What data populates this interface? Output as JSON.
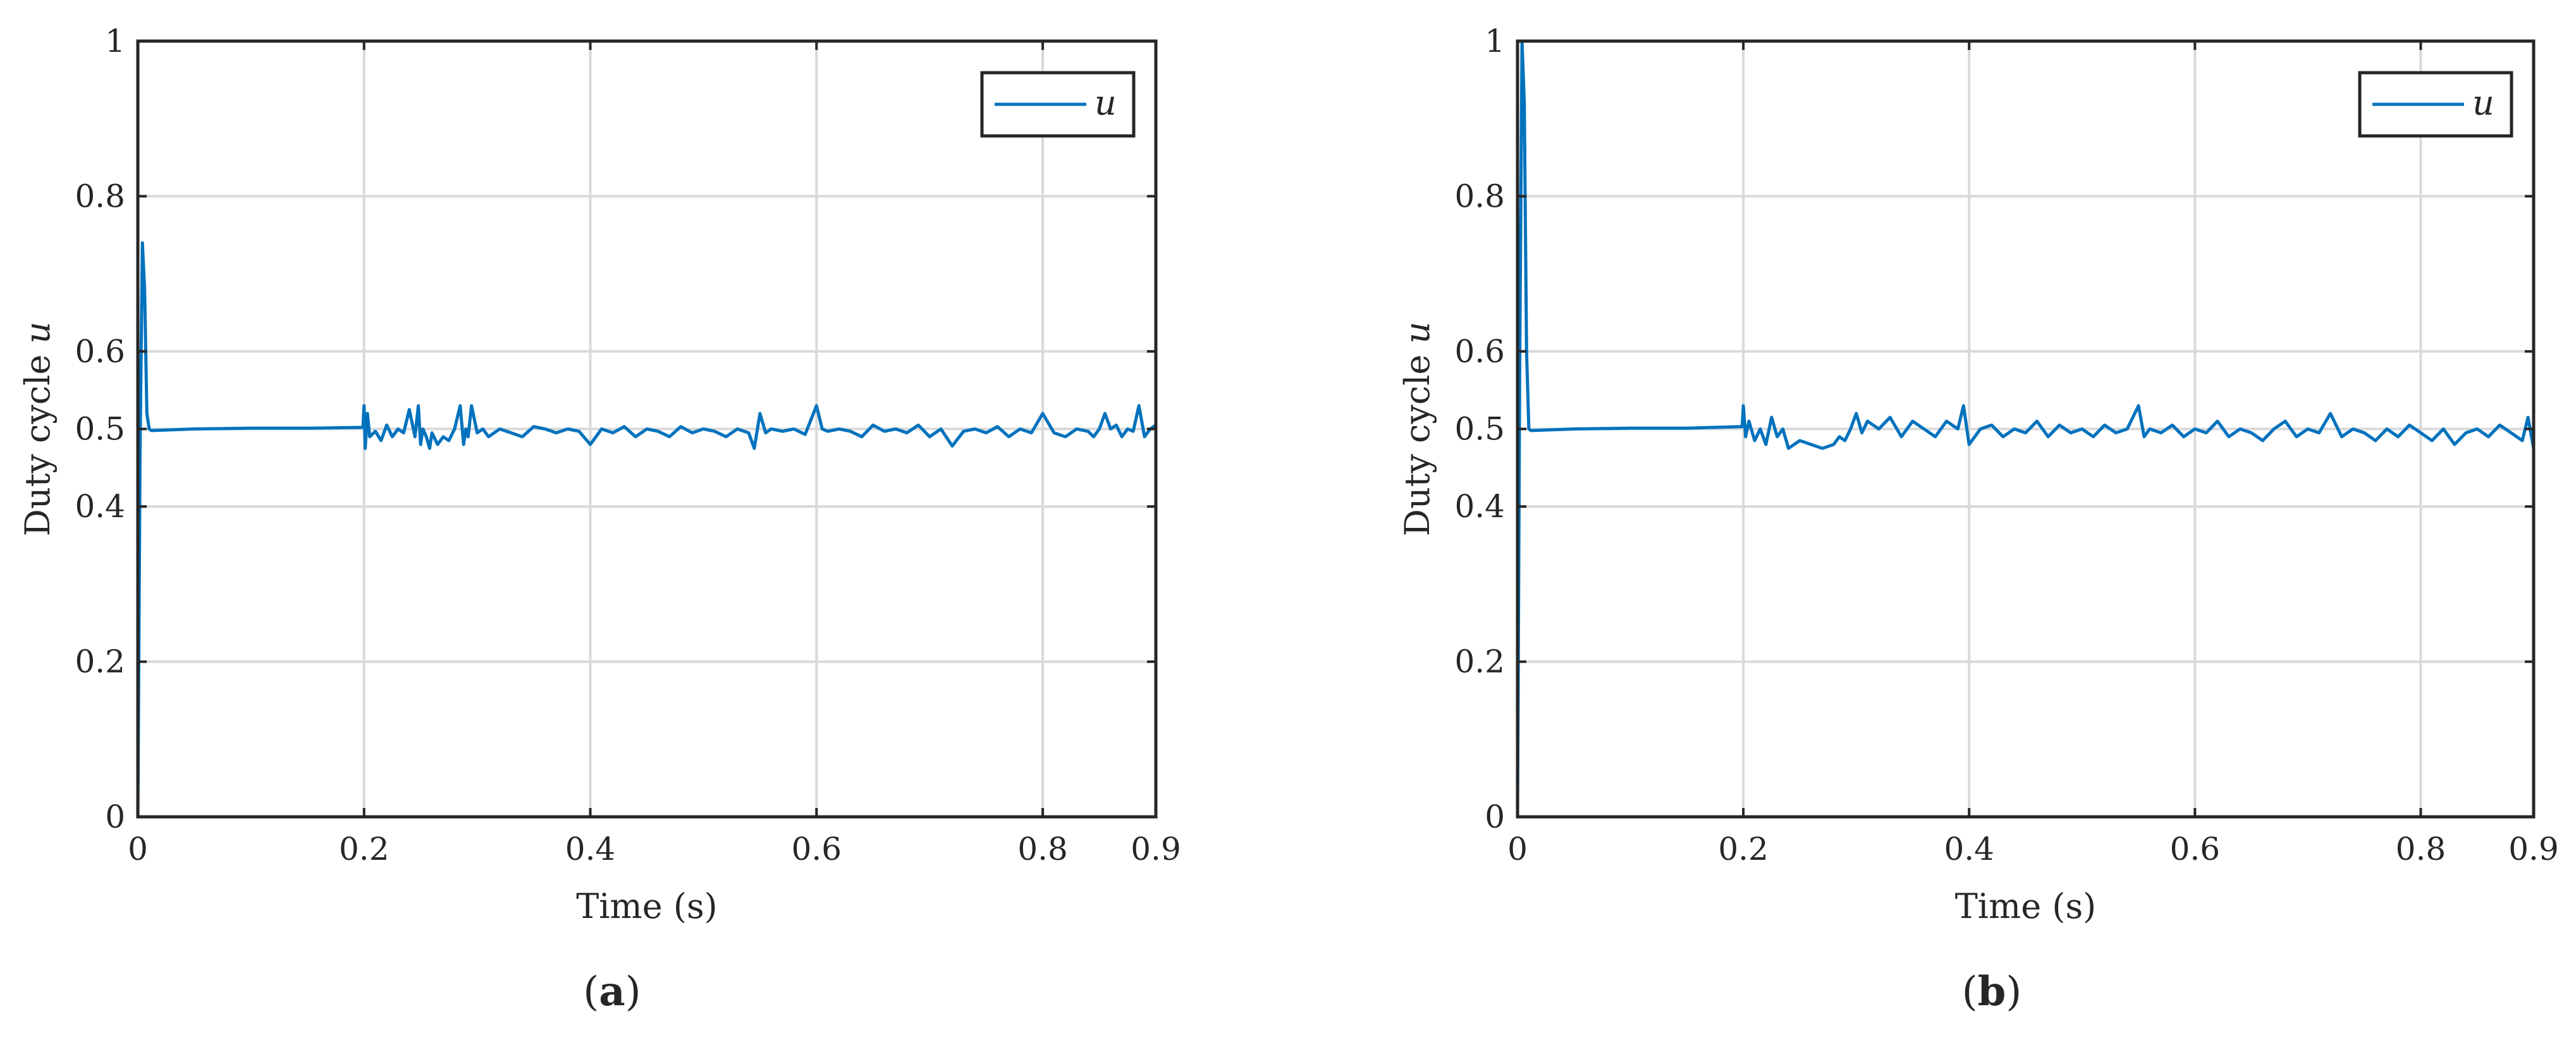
{
  "chart_data": [
    {
      "type": "line",
      "panel": "a",
      "caption": {
        "open": "(",
        "letter": "a",
        "close": ")"
      },
      "xlabel": "Time (s)",
      "ylabel_text": "Duty cycle ",
      "ylabel_var": "u",
      "xlim": [
        0,
        0.9
      ],
      "ylim": [
        0,
        1
      ],
      "xticks": [
        "0",
        "0.2",
        "0.4",
        "0.6",
        "0.8",
        "0.9"
      ],
      "xtick_values": [
        0,
        0.2,
        0.4,
        0.6,
        0.8,
        0.9
      ],
      "yticks": [
        "0",
        "0.2",
        "0.4",
        "0.5",
        "0.6",
        "0.8",
        "1"
      ],
      "ytick_values": [
        0,
        0.2,
        0.4,
        0.5,
        0.6,
        0.8,
        1
      ],
      "grid": true,
      "legend_position": "top-right",
      "series": [
        {
          "name": "u",
          "color": "#0072BD",
          "x": [
            0,
            0.002,
            0.004,
            0.006,
            0.008,
            0.01,
            0.012,
            0.05,
            0.1,
            0.15,
            0.199,
            0.2,
            0.201,
            0.203,
            0.205,
            0.21,
            0.215,
            0.22,
            0.225,
            0.23,
            0.235,
            0.24,
            0.245,
            0.248,
            0.25,
            0.252,
            0.255,
            0.258,
            0.26,
            0.265,
            0.27,
            0.275,
            0.28,
            0.285,
            0.288,
            0.29,
            0.292,
            0.295,
            0.3,
            0.305,
            0.31,
            0.32,
            0.33,
            0.34,
            0.35,
            0.36,
            0.37,
            0.38,
            0.39,
            0.4,
            0.41,
            0.42,
            0.43,
            0.44,
            0.45,
            0.46,
            0.47,
            0.48,
            0.49,
            0.5,
            0.51,
            0.52,
            0.53,
            0.54,
            0.545,
            0.55,
            0.555,
            0.56,
            0.57,
            0.58,
            0.59,
            0.6,
            0.605,
            0.61,
            0.62,
            0.63,
            0.64,
            0.65,
            0.66,
            0.67,
            0.68,
            0.69,
            0.7,
            0.71,
            0.72,
            0.73,
            0.74,
            0.75,
            0.76,
            0.77,
            0.78,
            0.79,
            0.8,
            0.81,
            0.82,
            0.83,
            0.84,
            0.845,
            0.85,
            0.855,
            0.86,
            0.865,
            0.87,
            0.875,
            0.88,
            0.885,
            0.89,
            0.895,
            0.9
          ],
          "values": [
            0,
            0.48,
            0.74,
            0.68,
            0.52,
            0.5,
            0.498,
            0.5,
            0.501,
            0.501,
            0.502,
            0.53,
            0.475,
            0.52,
            0.49,
            0.497,
            0.485,
            0.505,
            0.49,
            0.5,
            0.495,
            0.525,
            0.49,
            0.53,
            0.48,
            0.5,
            0.49,
            0.475,
            0.495,
            0.48,
            0.49,
            0.485,
            0.5,
            0.53,
            0.48,
            0.5,
            0.49,
            0.53,
            0.495,
            0.5,
            0.49,
            0.5,
            0.495,
            0.49,
            0.503,
            0.5,
            0.495,
            0.5,
            0.497,
            0.48,
            0.5,
            0.495,
            0.503,
            0.49,
            0.5,
            0.497,
            0.49,
            0.503,
            0.495,
            0.5,
            0.497,
            0.49,
            0.5,
            0.495,
            0.475,
            0.52,
            0.495,
            0.5,
            0.497,
            0.5,
            0.493,
            0.53,
            0.5,
            0.497,
            0.5,
            0.497,
            0.49,
            0.505,
            0.497,
            0.5,
            0.495,
            0.505,
            0.49,
            0.5,
            0.478,
            0.497,
            0.5,
            0.495,
            0.503,
            0.49,
            0.5,
            0.495,
            0.52,
            0.495,
            0.49,
            0.5,
            0.497,
            0.49,
            0.5,
            0.52,
            0.5,
            0.505,
            0.49,
            0.5,
            0.497,
            0.53,
            0.49,
            0.5,
            0.505
          ]
        }
      ]
    },
    {
      "type": "line",
      "panel": "b",
      "caption": {
        "open": "(",
        "letter": "b",
        "close": ")"
      },
      "xlabel": "Time (s)",
      "ylabel_text": "Duty cycle ",
      "ylabel_var": "u",
      "xlim": [
        0,
        0.9
      ],
      "ylim": [
        0,
        1
      ],
      "xticks": [
        "0",
        "0.2",
        "0.4",
        "0.6",
        "0.8",
        "0.9"
      ],
      "xtick_values": [
        0,
        0.2,
        0.4,
        0.6,
        0.8,
        0.9
      ],
      "yticks": [
        "0",
        "0.2",
        "0.4",
        "0.5",
        "0.6",
        "0.8",
        "1"
      ],
      "ytick_values": [
        0,
        0.2,
        0.4,
        0.5,
        0.6,
        0.8,
        1
      ],
      "grid": true,
      "legend_position": "top-right",
      "series": [
        {
          "name": "u",
          "color": "#0072BD",
          "x": [
            0,
            0.002,
            0.004,
            0.006,
            0.008,
            0.01,
            0.012,
            0.05,
            0.1,
            0.15,
            0.199,
            0.2,
            0.202,
            0.205,
            0.21,
            0.215,
            0.22,
            0.225,
            0.23,
            0.235,
            0.24,
            0.25,
            0.26,
            0.27,
            0.28,
            0.285,
            0.29,
            0.295,
            0.3,
            0.305,
            0.31,
            0.32,
            0.33,
            0.34,
            0.35,
            0.36,
            0.37,
            0.38,
            0.39,
            0.395,
            0.4,
            0.41,
            0.42,
            0.43,
            0.44,
            0.45,
            0.46,
            0.47,
            0.48,
            0.49,
            0.5,
            0.51,
            0.52,
            0.53,
            0.54,
            0.55,
            0.555,
            0.56,
            0.57,
            0.58,
            0.59,
            0.6,
            0.61,
            0.62,
            0.63,
            0.64,
            0.65,
            0.66,
            0.67,
            0.68,
            0.69,
            0.7,
            0.71,
            0.72,
            0.73,
            0.74,
            0.75,
            0.76,
            0.77,
            0.78,
            0.79,
            0.8,
            0.81,
            0.82,
            0.83,
            0.84,
            0.85,
            0.86,
            0.87,
            0.88,
            0.89,
            0.895,
            0.9
          ],
          "values": [
            0,
            0.6,
            1.0,
            0.92,
            0.6,
            0.5,
            0.498,
            0.5,
            0.501,
            0.501,
            0.503,
            0.53,
            0.49,
            0.51,
            0.485,
            0.5,
            0.48,
            0.515,
            0.49,
            0.5,
            0.475,
            0.485,
            0.48,
            0.475,
            0.48,
            0.49,
            0.485,
            0.5,
            0.52,
            0.495,
            0.51,
            0.5,
            0.515,
            0.49,
            0.51,
            0.5,
            0.49,
            0.51,
            0.5,
            0.53,
            0.48,
            0.5,
            0.505,
            0.49,
            0.5,
            0.495,
            0.51,
            0.49,
            0.505,
            0.495,
            0.5,
            0.49,
            0.505,
            0.495,
            0.5,
            0.53,
            0.49,
            0.5,
            0.495,
            0.505,
            0.49,
            0.5,
            0.495,
            0.51,
            0.49,
            0.5,
            0.495,
            0.485,
            0.5,
            0.51,
            0.49,
            0.5,
            0.495,
            0.52,
            0.49,
            0.5,
            0.495,
            0.485,
            0.5,
            0.49,
            0.505,
            0.495,
            0.485,
            0.5,
            0.48,
            0.495,
            0.5,
            0.49,
            0.505,
            0.495,
            0.485,
            0.515,
            0.475
          ]
        }
      ]
    }
  ]
}
